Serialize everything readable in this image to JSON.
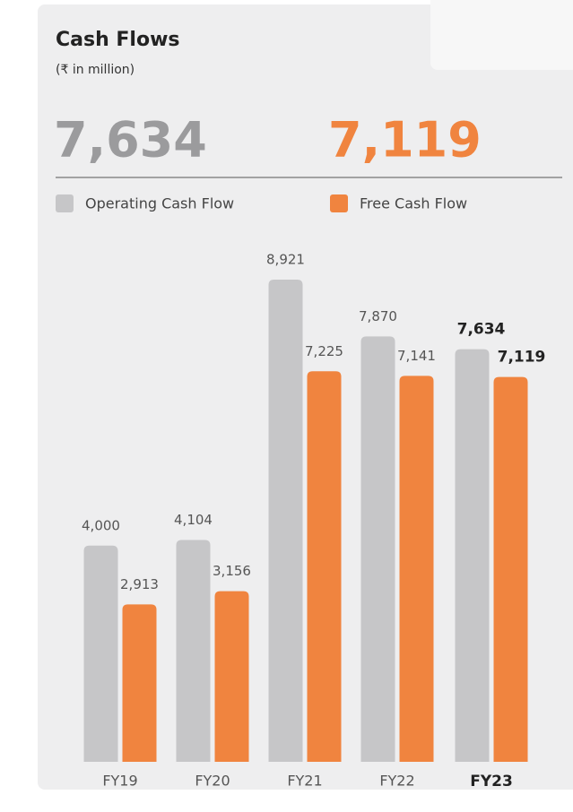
{
  "chart_data": {
    "type": "bar",
    "title": "Cash Flows",
    "subtitle": "(₹ in million)",
    "categories": [
      "FY19",
      "FY20",
      "FY21",
      "FY22",
      "FY23"
    ],
    "series": [
      {
        "name": "Operating Cash Flow",
        "color": "#c6c6c8",
        "values": [
          4000,
          4104,
          8921,
          7870,
          7634
        ],
        "value_labels": [
          "4,000",
          "4,104",
          "8,921",
          "7,870",
          "7,634"
        ]
      },
      {
        "name": "Free Cash Flow",
        "color": "#f0843f",
        "values": [
          2913,
          3156,
          7225,
          7141,
          7119
        ],
        "value_labels": [
          "2,913",
          "3,156",
          "7,225",
          "7,141",
          "7,119"
        ]
      }
    ]
  }
}
